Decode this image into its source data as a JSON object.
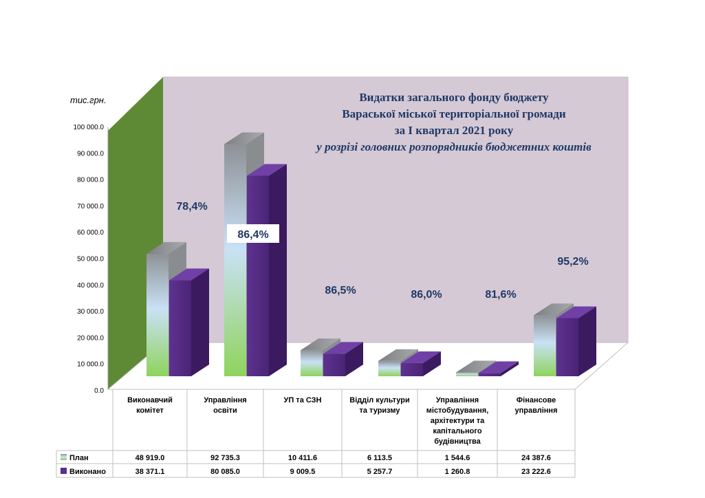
{
  "chart_data": {
    "type": "bar",
    "title_lines": [
      "Видатки загального фонду бюджету",
      "Вараської міської  територіальної громади",
      "за І квартал 2021 року"
    ],
    "subtitle": "у розрізі головних розпорядників бюджетних коштів",
    "ylabel": "тис.грн.",
    "ylim": [
      0,
      100000
    ],
    "yticks": [
      "0.0",
      "10 000.0",
      "20 000.0",
      "30 000.0",
      "40 000.0",
      "50 000.0",
      "60 000.0",
      "70 000.0",
      "80 000.0",
      "90 000.0",
      "100 000.0"
    ],
    "categories": [
      [
        "Виконавчий",
        "комітет"
      ],
      [
        "Управління",
        "освіти"
      ],
      [
        "УП та СЗН"
      ],
      [
        "Відділ культури",
        "та туризму"
      ],
      [
        "Управління",
        "містобудування,",
        "архітектури та",
        "капітального",
        "будівництва"
      ],
      [
        "Фінансове",
        "управління"
      ]
    ],
    "series": [
      {
        "name": "План",
        "values": [
          48919.0,
          92735.3,
          10411.6,
          6113.5,
          1544.6,
          24387.6
        ],
        "labels": [
          "48 919.0",
          "92 735.3",
          "10 411.6",
          "6 113.5",
          "1 544.6",
          "24 387.6"
        ],
        "color": "#9aa0a6"
      },
      {
        "name": "Виконано",
        "values": [
          38371.1,
          80085.0,
          9009.5,
          5257.7,
          1260.8,
          23222.6
        ],
        "labels": [
          "38 371.1",
          "80 085.0",
          "9 009.5",
          "5 257.7",
          "1 260.8",
          "23 222.6"
        ],
        "color": "#5b2d8e"
      }
    ],
    "percent_labels": [
      "78,4%",
      "86,4%",
      "86,5%",
      "86,0%",
      "81,6%",
      "95,2%"
    ],
    "colors": {
      "wall": "#d5c9d6",
      "side_wall": "#5f8a35",
      "title": "#1f3864",
      "bar_purple": "#5b2d8e"
    },
    "grid": false,
    "legend": "data-table-below"
  }
}
